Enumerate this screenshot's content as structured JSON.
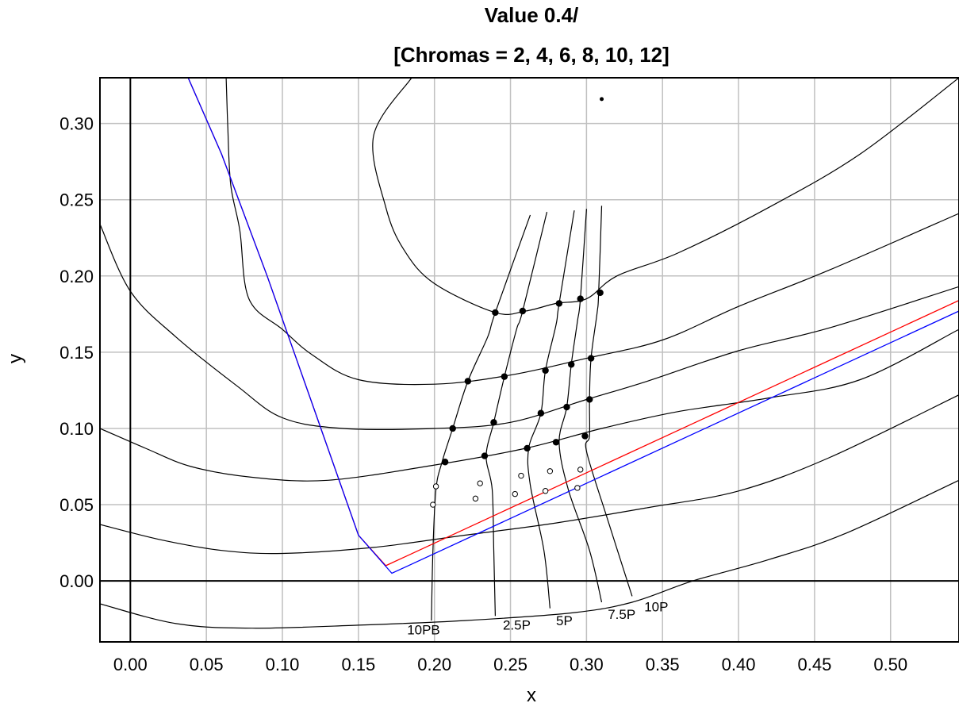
{
  "chart_data": {
    "type": "line",
    "title_line1": "Value 0.4/",
    "title_line2": "[Chromas = 2, 4, 6, 8, 10, 12]",
    "xlabel": "x",
    "ylabel": "y",
    "xlim": [
      -0.02,
      0.545
    ],
    "ylim": [
      -0.04,
      0.33
    ],
    "xticks": [
      "0.00",
      "0.05",
      "0.10",
      "0.15",
      "0.20",
      "0.25",
      "0.30",
      "0.35",
      "0.40",
      "0.45",
      "0.50"
    ],
    "yticks": [
      "0.00",
      "0.05",
      "0.10",
      "0.15",
      "0.20",
      "0.25",
      "0.30"
    ],
    "grid": true,
    "colors": {
      "curves": "#000000",
      "red_line": "#ff0000",
      "blue_line": "#0000ff",
      "grid": "#c0c0c0"
    },
    "white_point": [
      0.31,
      0.316
    ],
    "red_line": [
      [
        0.038,
        0.33
      ],
      [
        0.06,
        0.28
      ],
      [
        0.09,
        0.2
      ],
      [
        0.12,
        0.115
      ],
      [
        0.15,
        0.03
      ],
      [
        0.168,
        0.01
      ],
      [
        0.545,
        0.184
      ]
    ],
    "blue_line": [
      [
        0.038,
        0.33
      ],
      [
        0.06,
        0.28
      ],
      [
        0.09,
        0.2
      ],
      [
        0.12,
        0.115
      ],
      [
        0.15,
        0.03
      ],
      [
        0.172,
        0.005
      ],
      [
        0.545,
        0.177
      ]
    ],
    "chroma_curves": [
      [
        [
          -0.02,
          -0.015
        ],
        [
          0.03,
          -0.028
        ],
        [
          0.08,
          -0.031
        ],
        [
          0.15,
          -0.029
        ],
        [
          0.22,
          -0.026
        ],
        [
          0.29,
          -0.021
        ],
        [
          0.33,
          -0.014
        ],
        [
          0.37,
          0.0
        ],
        [
          0.42,
          0.014
        ],
        [
          0.47,
          0.031
        ],
        [
          0.545,
          0.066
        ]
      ],
      [
        [
          -0.02,
          0.037
        ],
        [
          0.02,
          0.027
        ],
        [
          0.06,
          0.02
        ],
        [
          0.1,
          0.018
        ],
        [
          0.16,
          0.022
        ],
        [
          0.22,
          0.03
        ],
        [
          0.28,
          0.038
        ],
        [
          0.34,
          0.048
        ],
        [
          0.4,
          0.059
        ],
        [
          0.46,
          0.081
        ],
        [
          0.545,
          0.122
        ]
      ],
      [
        [
          -0.02,
          0.1
        ],
        [
          0.01,
          0.087
        ],
        [
          0.04,
          0.075
        ],
        [
          0.08,
          0.068
        ],
        [
          0.13,
          0.066
        ],
        [
          0.2,
          0.076
        ],
        [
          0.26,
          0.087
        ],
        [
          0.31,
          0.1
        ],
        [
          0.36,
          0.111
        ],
        [
          0.42,
          0.12
        ],
        [
          0.48,
          0.132
        ],
        [
          0.545,
          0.165
        ]
      ],
      [
        [
          -0.02,
          0.234
        ],
        [
          0.0,
          0.19
        ],
        [
          0.03,
          0.16
        ],
        [
          0.07,
          0.128
        ],
        [
          0.1,
          0.107
        ],
        [
          0.14,
          0.1
        ],
        [
          0.2,
          0.1
        ],
        [
          0.25,
          0.104
        ],
        [
          0.3,
          0.119
        ],
        [
          0.34,
          0.131
        ],
        [
          0.4,
          0.151
        ],
        [
          0.46,
          0.166
        ],
        [
          0.545,
          0.193
        ]
      ],
      [
        [
          0.063,
          0.33
        ],
        [
          0.064,
          0.3
        ],
        [
          0.066,
          0.26
        ],
        [
          0.072,
          0.23
        ],
        [
          0.078,
          0.185
        ],
        [
          0.1,
          0.165
        ],
        [
          0.12,
          0.148
        ],
        [
          0.15,
          0.132
        ],
        [
          0.2,
          0.129
        ],
        [
          0.25,
          0.135
        ],
        [
          0.3,
          0.146
        ],
        [
          0.35,
          0.158
        ],
        [
          0.4,
          0.18
        ],
        [
          0.46,
          0.204
        ],
        [
          0.545,
          0.241
        ]
      ],
      [
        [
          0.185,
          0.33
        ],
        [
          0.16,
          0.292
        ],
        [
          0.168,
          0.245
        ],
        [
          0.18,
          0.217
        ],
        [
          0.2,
          0.195
        ],
        [
          0.24,
          0.176
        ],
        [
          0.26,
          0.177
        ],
        [
          0.28,
          0.182
        ],
        [
          0.3,
          0.185
        ],
        [
          0.32,
          0.2
        ],
        [
          0.36,
          0.215
        ],
        [
          0.42,
          0.245
        ],
        [
          0.48,
          0.28
        ],
        [
          0.545,
          0.33
        ]
      ]
    ],
    "hue_lines": [
      {
        "label": "10PB",
        "label_at": [
          0.182,
          -0.035
        ],
        "points": [
          [
            0.198,
            -0.026
          ],
          [
            0.199,
            0.02
          ],
          [
            0.201,
            0.06
          ],
          [
            0.205,
            0.078
          ],
          [
            0.212,
            0.1
          ],
          [
            0.222,
            0.131
          ],
          [
            0.235,
            0.16
          ],
          [
            0.24,
            0.176
          ],
          [
            0.263,
            0.24
          ]
        ]
      },
      {
        "label": "2.5P",
        "label_at": [
          0.245,
          -0.032
        ],
        "points": [
          [
            0.24,
            -0.023
          ],
          [
            0.239,
            0.02
          ],
          [
            0.238,
            0.06
          ],
          [
            0.234,
            0.082
          ],
          [
            0.239,
            0.104
          ],
          [
            0.246,
            0.134
          ],
          [
            0.254,
            0.165
          ],
          [
            0.258,
            0.177
          ],
          [
            0.274,
            0.242
          ]
        ]
      },
      {
        "label": "5P",
        "label_at": [
          0.28,
          -0.029
        ],
        "points": [
          [
            0.276,
            -0.018
          ],
          [
            0.272,
            0.02
          ],
          [
            0.263,
            0.063
          ],
          [
            0.262,
            0.087
          ],
          [
            0.27,
            0.11
          ],
          [
            0.273,
            0.138
          ],
          [
            0.28,
            0.168
          ],
          [
            0.282,
            0.182
          ],
          [
            0.292,
            0.243
          ]
        ]
      },
      {
        "label": "7.5P",
        "label_at": [
          0.314,
          -0.025
        ],
        "points": [
          [
            0.31,
            -0.014
          ],
          [
            0.302,
            0.02
          ],
          [
            0.288,
            0.06
          ],
          [
            0.282,
            0.091
          ],
          [
            0.287,
            0.114
          ],
          [
            0.29,
            0.142
          ],
          [
            0.294,
            0.17
          ],
          [
            0.296,
            0.185
          ],
          [
            0.3,
            0.244
          ]
        ]
      },
      {
        "label": "10P",
        "label_at": [
          0.338,
          -0.02
        ],
        "points": [
          [
            0.33,
            -0.01
          ],
          [
            0.314,
            0.04
          ],
          [
            0.3,
            0.085
          ],
          [
            0.302,
            0.095
          ],
          [
            0.302,
            0.119
          ],
          [
            0.303,
            0.146
          ],
          [
            0.307,
            0.176
          ],
          [
            0.308,
            0.189
          ],
          [
            0.31,
            0.246
          ]
        ]
      }
    ],
    "filled_points": [
      [
        0.207,
        0.078
      ],
      [
        0.233,
        0.082
      ],
      [
        0.261,
        0.087
      ],
      [
        0.28,
        0.091
      ],
      [
        0.299,
        0.095
      ],
      [
        0.212,
        0.1
      ],
      [
        0.239,
        0.104
      ],
      [
        0.27,
        0.11
      ],
      [
        0.287,
        0.114
      ],
      [
        0.302,
        0.119
      ],
      [
        0.222,
        0.131
      ],
      [
        0.246,
        0.134
      ],
      [
        0.273,
        0.138
      ],
      [
        0.29,
        0.142
      ],
      [
        0.303,
        0.146
      ],
      [
        0.24,
        0.176
      ],
      [
        0.258,
        0.177
      ],
      [
        0.282,
        0.182
      ],
      [
        0.296,
        0.185
      ],
      [
        0.309,
        0.189
      ]
    ],
    "open_points": [
      [
        0.199,
        0.05
      ],
      [
        0.201,
        0.062
      ],
      [
        0.227,
        0.054
      ],
      [
        0.23,
        0.064
      ],
      [
        0.253,
        0.057
      ],
      [
        0.257,
        0.069
      ],
      [
        0.273,
        0.059
      ],
      [
        0.276,
        0.072
      ],
      [
        0.294,
        0.061
      ],
      [
        0.296,
        0.073
      ]
    ]
  }
}
